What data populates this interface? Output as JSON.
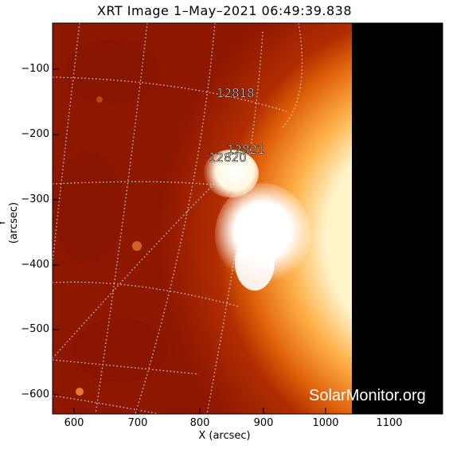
{
  "title": "XRT Image   1–May–2021 06:49:39.838",
  "axes": {
    "x_label": "X (arcsec)",
    "y_label": "Y (arcsec)",
    "x_ticks": [
      "600",
      "700",
      "800",
      "900",
      "1000",
      "1100"
    ],
    "y_ticks": [
      "−100",
      "−200",
      "−300",
      "−400",
      "−500",
      "−600"
    ]
  },
  "regions": {
    "r1": "12818",
    "r2": "12821",
    "r3": "12820"
  },
  "watermark": "SolarMonitor.org",
  "colors": {
    "solar_dark": "#8d1200",
    "solar_mid": "#c43b00",
    "solar_bright": "#ffd17a",
    "space": "#000000"
  }
}
